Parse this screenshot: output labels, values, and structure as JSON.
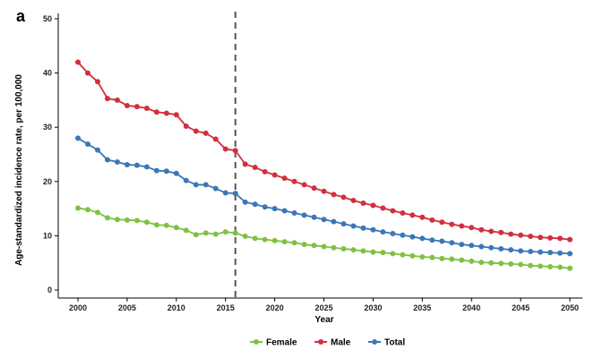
{
  "panel_label": "a",
  "chart_data": {
    "type": "line",
    "xlabel": "Year",
    "ylabel": "Age-standardized incidence rate, per 100,000",
    "xlim": [
      2000,
      2050
    ],
    "ylim": [
      0,
      50
    ],
    "x_ticks": [
      2000,
      2005,
      2010,
      2015,
      2020,
      2025,
      2030,
      2035,
      2040,
      2045,
      2050
    ],
    "y_ticks": [
      0,
      10,
      20,
      30,
      40,
      50
    ],
    "reference_line": {
      "x": 2016,
      "style": "dashed"
    },
    "legend_position": "bottom",
    "x": [
      2000,
      2001,
      2002,
      2003,
      2004,
      2005,
      2006,
      2007,
      2008,
      2009,
      2010,
      2011,
      2012,
      2013,
      2014,
      2015,
      2016,
      2017,
      2018,
      2019,
      2020,
      2021,
      2022,
      2023,
      2024,
      2025,
      2026,
      2027,
      2028,
      2029,
      2030,
      2031,
      2032,
      2033,
      2034,
      2035,
      2036,
      2037,
      2038,
      2039,
      2040,
      2041,
      2042,
      2043,
      2044,
      2045,
      2046,
      2047,
      2048,
      2049,
      2050
    ],
    "series": [
      {
        "name": "Female",
        "color": "#7dc242",
        "values": [
          15.1,
          14.8,
          14.3,
          13.3,
          13.0,
          12.9,
          12.8,
          12.5,
          12.0,
          11.9,
          11.5,
          11.0,
          10.2,
          10.5,
          10.3,
          10.7,
          10.5,
          9.9,
          9.5,
          9.3,
          9.1,
          8.9,
          8.7,
          8.4,
          8.2,
          8.0,
          7.8,
          7.6,
          7.4,
          7.2,
          7.0,
          6.9,
          6.7,
          6.5,
          6.3,
          6.1,
          6.0,
          5.8,
          5.7,
          5.5,
          5.3,
          5.1,
          5.0,
          4.9,
          4.8,
          4.7,
          4.5,
          4.4,
          4.3,
          4.2,
          4.0
        ]
      },
      {
        "name": "Male",
        "color": "#d12f3d",
        "values": [
          42.0,
          40.0,
          38.4,
          35.3,
          35.0,
          34.0,
          33.8,
          33.5,
          32.8,
          32.6,
          32.3,
          30.2,
          29.3,
          28.9,
          27.8,
          26.0,
          25.7,
          23.2,
          22.6,
          21.8,
          21.2,
          20.6,
          20.0,
          19.4,
          18.8,
          18.2,
          17.6,
          17.1,
          16.5,
          16.0,
          15.6,
          15.1,
          14.6,
          14.2,
          13.8,
          13.4,
          12.9,
          12.5,
          12.1,
          11.8,
          11.5,
          11.1,
          10.8,
          10.6,
          10.3,
          10.1,
          9.9,
          9.7,
          9.6,
          9.5,
          9.3
        ]
      },
      {
        "name": "Total",
        "color": "#3a77b8",
        "values": [
          28.0,
          26.9,
          25.8,
          24.0,
          23.6,
          23.1,
          23.0,
          22.7,
          22.0,
          21.9,
          21.5,
          20.2,
          19.4,
          19.4,
          18.7,
          17.9,
          17.8,
          16.2,
          15.8,
          15.3,
          15.0,
          14.6,
          14.2,
          13.8,
          13.4,
          13.0,
          12.6,
          12.2,
          11.8,
          11.4,
          11.1,
          10.7,
          10.4,
          10.1,
          9.8,
          9.5,
          9.2,
          9.0,
          8.7,
          8.4,
          8.2,
          8.0,
          7.8,
          7.6,
          7.4,
          7.2,
          7.1,
          7.0,
          6.9,
          6.8,
          6.7
        ]
      }
    ]
  }
}
